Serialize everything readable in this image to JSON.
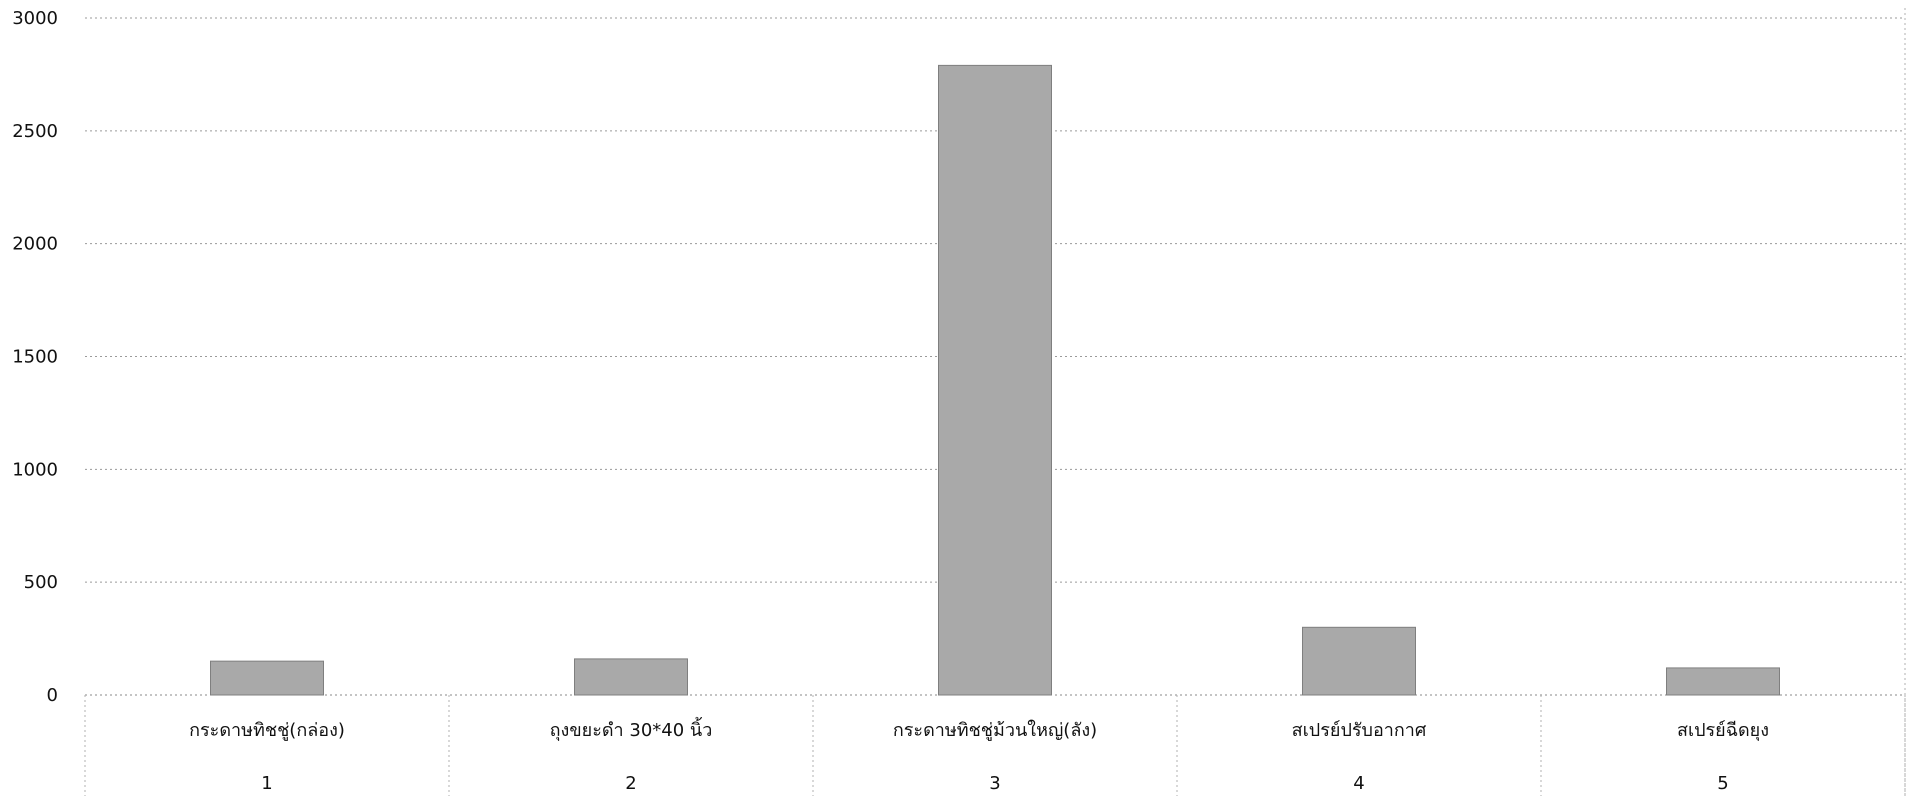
{
  "chart_data": {
    "type": "bar",
    "categories": [
      "กระดาษทิชชู่(กล่อง)",
      "ถุงขยะดำ 30*40 นิ้ว",
      "กระดาษทิชชู่ม้วนใหญ่(ลัง)",
      "สเปรย์ปรับอากาศ",
      "สเปรย์ฉีดยุง"
    ],
    "numbers": [
      "1",
      "2",
      "3",
      "4",
      "5"
    ],
    "values": [
      150,
      160,
      2790,
      300,
      120
    ],
    "ylim": [
      0,
      3000
    ],
    "yticks": [
      0,
      500,
      1000,
      1500,
      2000,
      2500,
      3000
    ],
    "grid": true,
    "legend": "none",
    "colors": {
      "bar": "#a9a9a9",
      "bar_stroke": "#7f7f7f",
      "grid": "#9a9a9a"
    }
  }
}
